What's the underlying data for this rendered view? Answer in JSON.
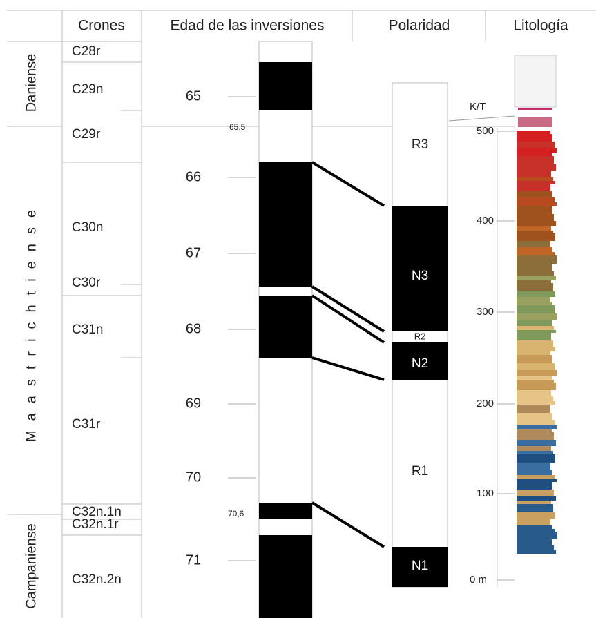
{
  "headers": [
    "Crones",
    "Edad de las inversiones",
    "Polaridad",
    "Litología"
  ],
  "stages": [
    "Daniense",
    "Maastrichtiense",
    "Campaniense"
  ],
  "chrons": [
    "C28r",
    "C29n",
    "C29r",
    "C30n",
    "C30r",
    "C31n",
    "C31r",
    "C32n.1n",
    "C32n.1r",
    "C32n.2n"
  ],
  "ages": [
    "65",
    "66",
    "67",
    "68",
    "69",
    "70",
    "71"
  ],
  "age_notes": [
    "65,5",
    "70,6"
  ],
  "polarity": [
    "R3",
    "N3",
    "R2",
    "N2",
    "R1",
    "N1"
  ],
  "lithology": {
    "boundary": "K/T",
    "depths": [
      "500",
      "400",
      "300",
      "200",
      "100",
      "0 m"
    ]
  }
}
